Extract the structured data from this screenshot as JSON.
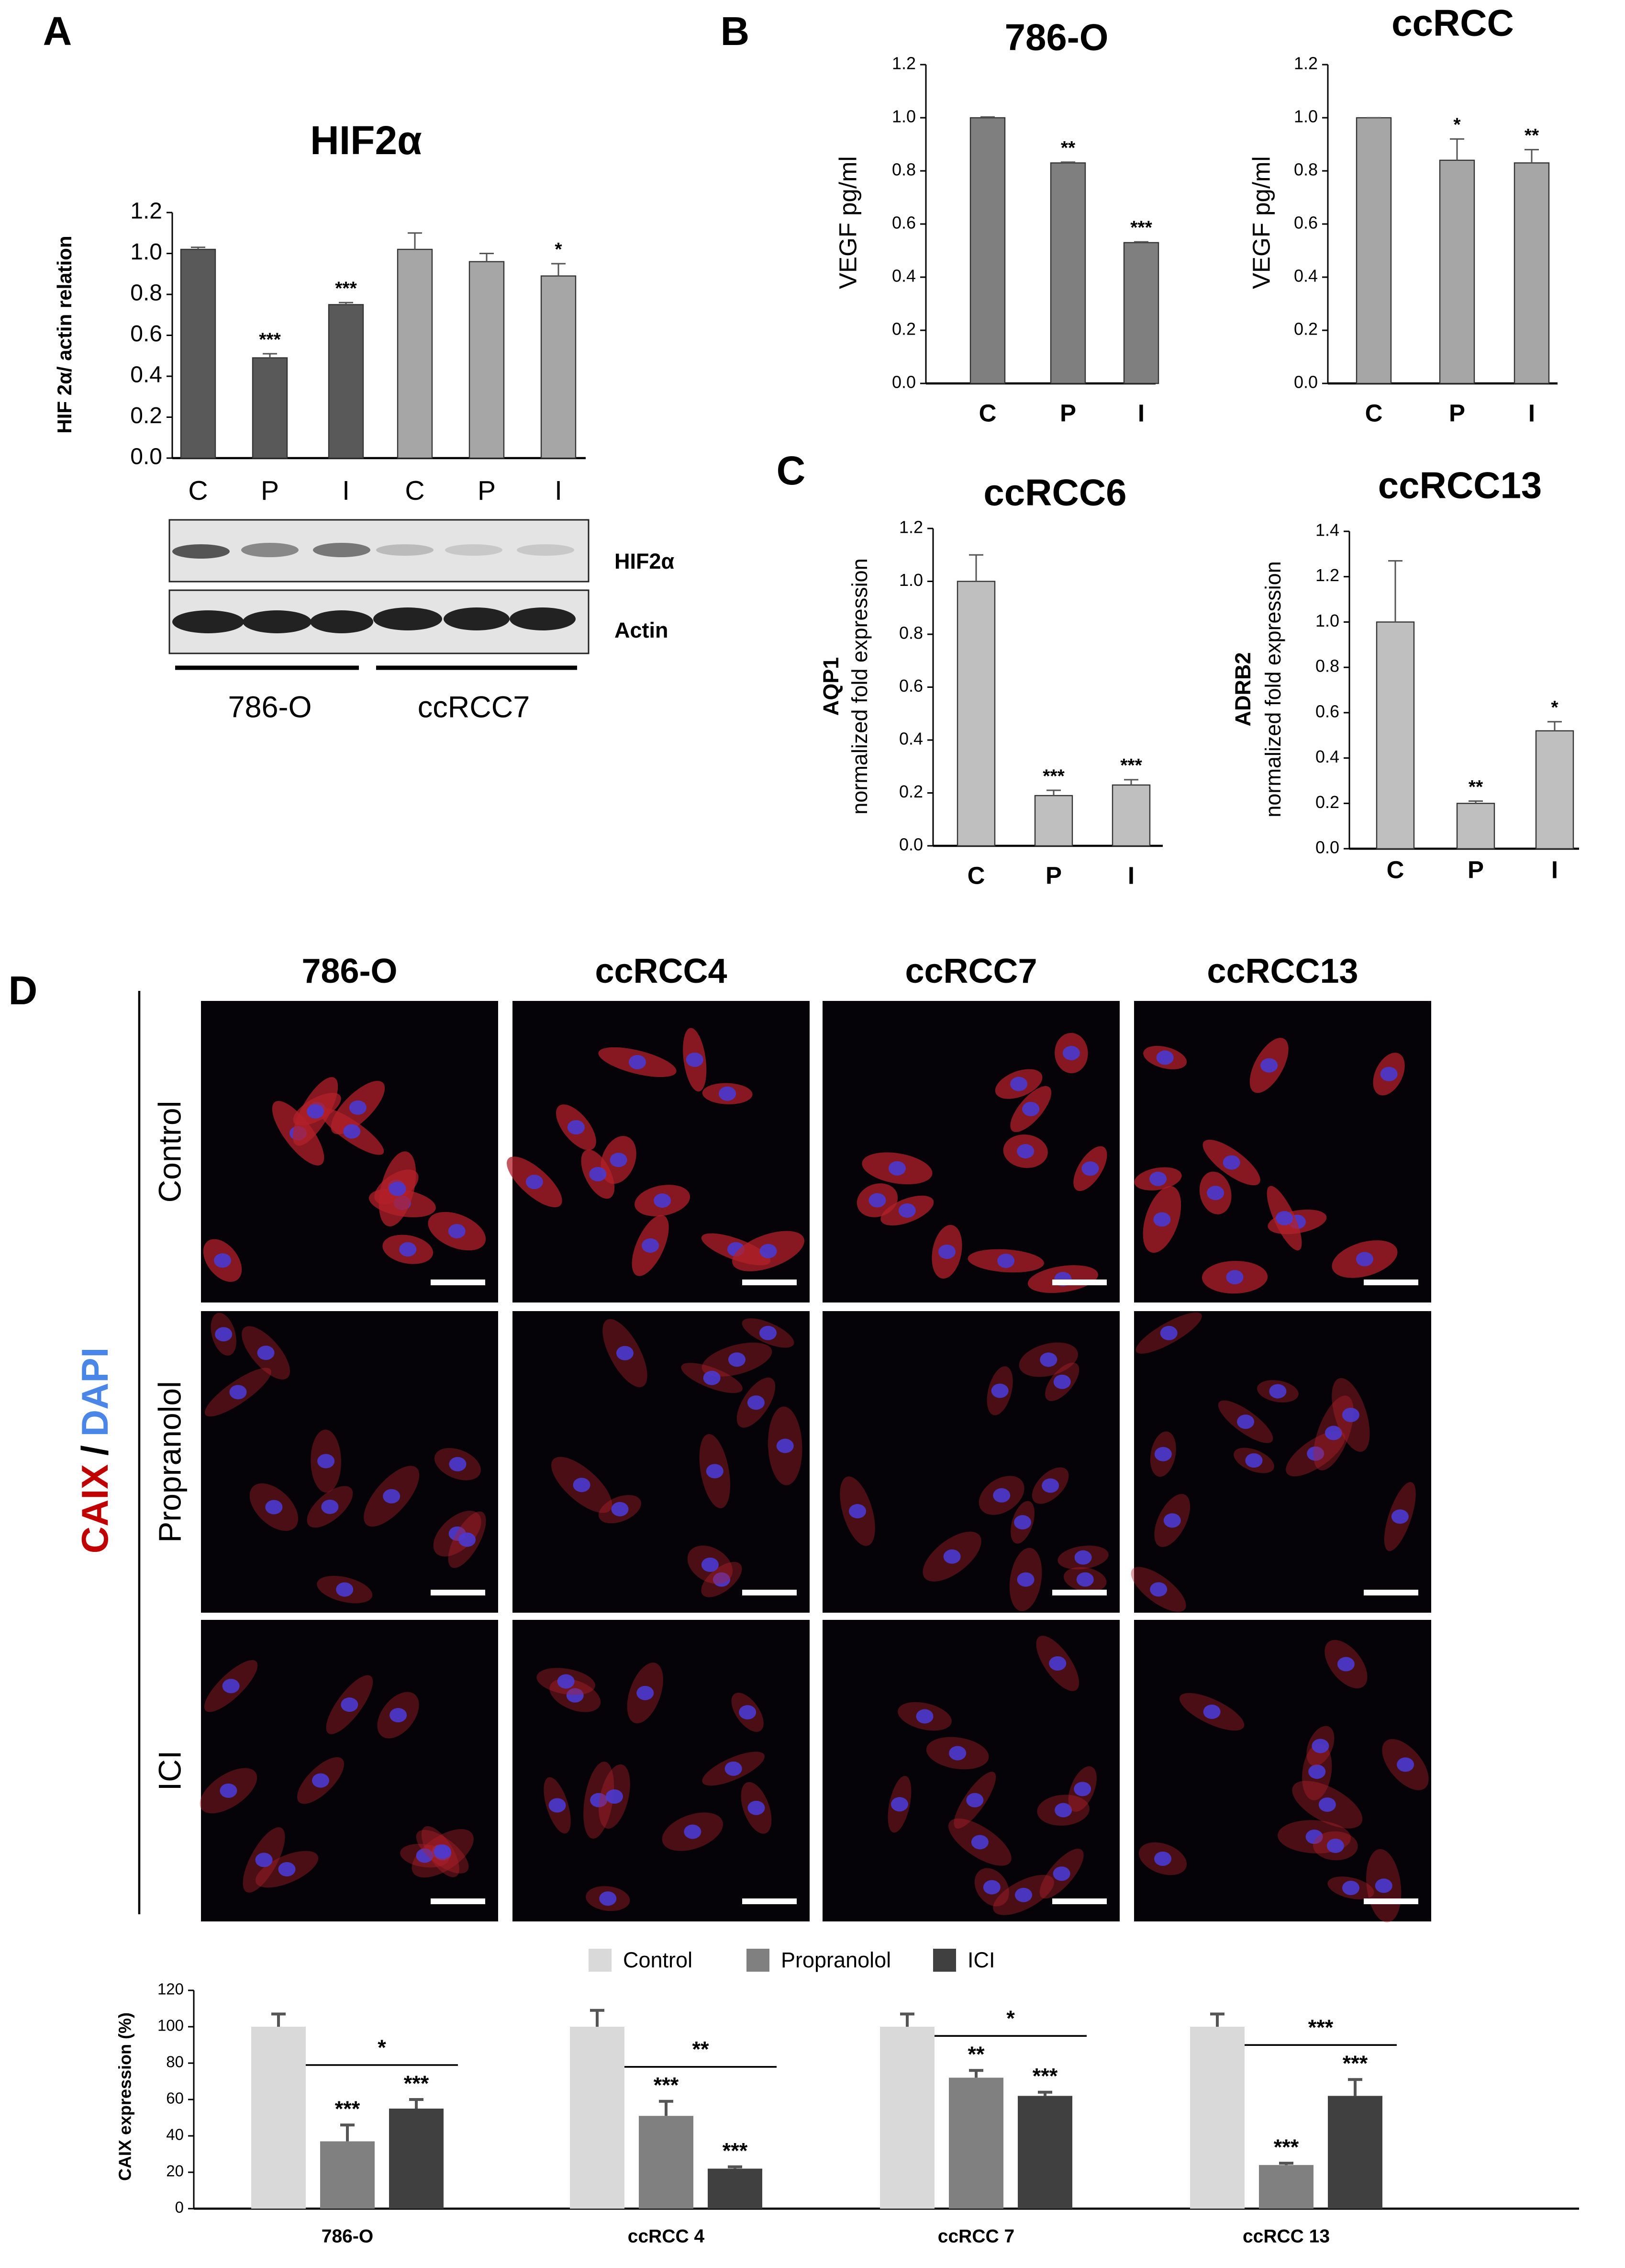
{
  "panels": [
    "A",
    "B",
    "C",
    "D"
  ],
  "blot": {
    "bands": [
      "HIF2α",
      "Actin"
    ],
    "groups": [
      "786-O",
      "ccRCC7"
    ]
  },
  "micrographs": {
    "columns": [
      "786-O",
      "ccRCC4",
      "ccRCC7",
      "ccRCC13"
    ],
    "rows": [
      "Control",
      "Propranolol",
      "ICI"
    ],
    "stain": [
      {
        "text": "CAIX",
        "color": "#c00000"
      },
      {
        "text": "/",
        "color": "#000000"
      },
      {
        "text": "DAPI",
        "color": "#4a86e8"
      }
    ]
  },
  "chart_data": [
    {
      "type": "bar",
      "title": "HIF2α",
      "ylabel": "HIF 2α/ actin relation",
      "categories": [
        "C",
        "P",
        "I",
        "C",
        "P",
        "I"
      ],
      "values": [
        1.02,
        0.49,
        0.75,
        1.02,
        0.96,
        0.89
      ],
      "errors": [
        0.01,
        0.02,
        0.01,
        0.08,
        0.04,
        0.06
      ],
      "annotations": [
        null,
        "***",
        "***",
        null,
        null,
        "*"
      ],
      "colors": [
        "#595959",
        "#595959",
        "#595959",
        "#a6a6a6",
        "#a6a6a6",
        "#a6a6a6"
      ],
      "ylim": [
        0,
        1.2
      ],
      "yticks": [
        {
          "value": 0,
          "label": "0.0"
        },
        0.2,
        0.4,
        0.6,
        0.8,
        {
          "value": 1,
          "label": "1.0"
        },
        1.2
      ]
    },
    {
      "type": "bar",
      "title": "786-O",
      "ylabel": "VEGF pg/ml",
      "categories": [
        "C",
        "P",
        "I"
      ],
      "values": [
        1.0,
        0.83,
        0.53
      ],
      "errors": [
        0.003,
        0.003,
        0.003
      ],
      "annotations": [
        null,
        "**",
        "***"
      ],
      "color": "#7f7f7f",
      "ylim": [
        0,
        1.2
      ],
      "yticks": [
        {
          "value": 0,
          "label": "0.0"
        },
        0.2,
        0.4,
        0.6,
        0.8,
        {
          "value": 1,
          "label": "1.0"
        },
        1.2
      ]
    },
    {
      "type": "bar",
      "title": "ccRCC",
      "ylabel": "VEGF pg/ml",
      "categories": [
        "C",
        "P",
        "I"
      ],
      "values": [
        1.0,
        0.84,
        0.83
      ],
      "errors": [
        0,
        0.08,
        0.05
      ],
      "annotations": [
        null,
        "*",
        "**"
      ],
      "color": "#a6a6a6",
      "ylim": [
        0,
        1.2
      ],
      "yticks": [
        {
          "value": 0,
          "label": "0.0"
        },
        0.2,
        0.4,
        0.6,
        0.8,
        {
          "value": 1,
          "label": "1.0"
        },
        1.2
      ]
    },
    {
      "type": "bar",
      "title": "ccRCC6",
      "ylabel": [
        "AQP1",
        "normalized fold expression"
      ],
      "categories": [
        "C",
        "P",
        "I"
      ],
      "values": [
        1.0,
        0.19,
        0.23
      ],
      "errors": [
        0.1,
        0.02,
        0.02
      ],
      "annotations": [
        null,
        "***",
        "***"
      ],
      "color": "#bfbfbf",
      "ylim": [
        0,
        1.2
      ],
      "yticks": [
        {
          "value": 0,
          "label": "0.0"
        },
        0.2,
        0.4,
        0.6,
        0.8,
        {
          "value": 1,
          "label": "1.0"
        },
        1.2
      ]
    },
    {
      "type": "bar",
      "title": "ccRCC13",
      "ylabel": [
        "ADRB2",
        "normalized fold expression"
      ],
      "categories": [
        "C",
        "P",
        "I"
      ],
      "values": [
        1.0,
        0.2,
        0.52
      ],
      "errors": [
        0.27,
        0.01,
        0.04
      ],
      "annotations": [
        null,
        "**",
        "*"
      ],
      "color": "#bfbfbf",
      "ylim": [
        0,
        1.4
      ],
      "yticks": [
        {
          "value": 0,
          "label": "0.0"
        },
        0.2,
        0.4,
        0.6,
        0.8,
        {
          "value": 1,
          "label": "1.0"
        },
        1.2,
        1.4
      ]
    },
    {
      "type": "grouped_bar",
      "ylabel": "CAIX expression (%)",
      "categories": [
        "786-O",
        "ccRCC 4",
        "ccRCC 7",
        "ccRCC 13"
      ],
      "series": [
        {
          "name": "Control",
          "color": "#d9d9d9",
          "values": [
            100,
            100,
            100,
            100
          ],
          "errors": [
            7,
            9,
            7,
            7
          ],
          "annotations": [
            null,
            null,
            null,
            null
          ]
        },
        {
          "name": "Propranolol",
          "color": "#808080",
          "values": [
            37,
            51,
            72,
            24
          ],
          "errors": [
            9,
            8,
            4,
            1
          ],
          "annotations": [
            "***",
            "***",
            "**",
            "***"
          ]
        },
        {
          "name": "ICI",
          "color": "#404040",
          "values": [
            55,
            22,
            62,
            62
          ],
          "errors": [
            5,
            1,
            2,
            9
          ],
          "annotations": [
            "***",
            "***",
            "***",
            "***"
          ]
        }
      ],
      "brackets": [
        "*",
        "**",
        "*",
        "***"
      ],
      "ylim": [
        0,
        120
      ],
      "yticks": [
        0,
        20,
        40,
        60,
        80,
        100,
        120
      ]
    }
  ]
}
